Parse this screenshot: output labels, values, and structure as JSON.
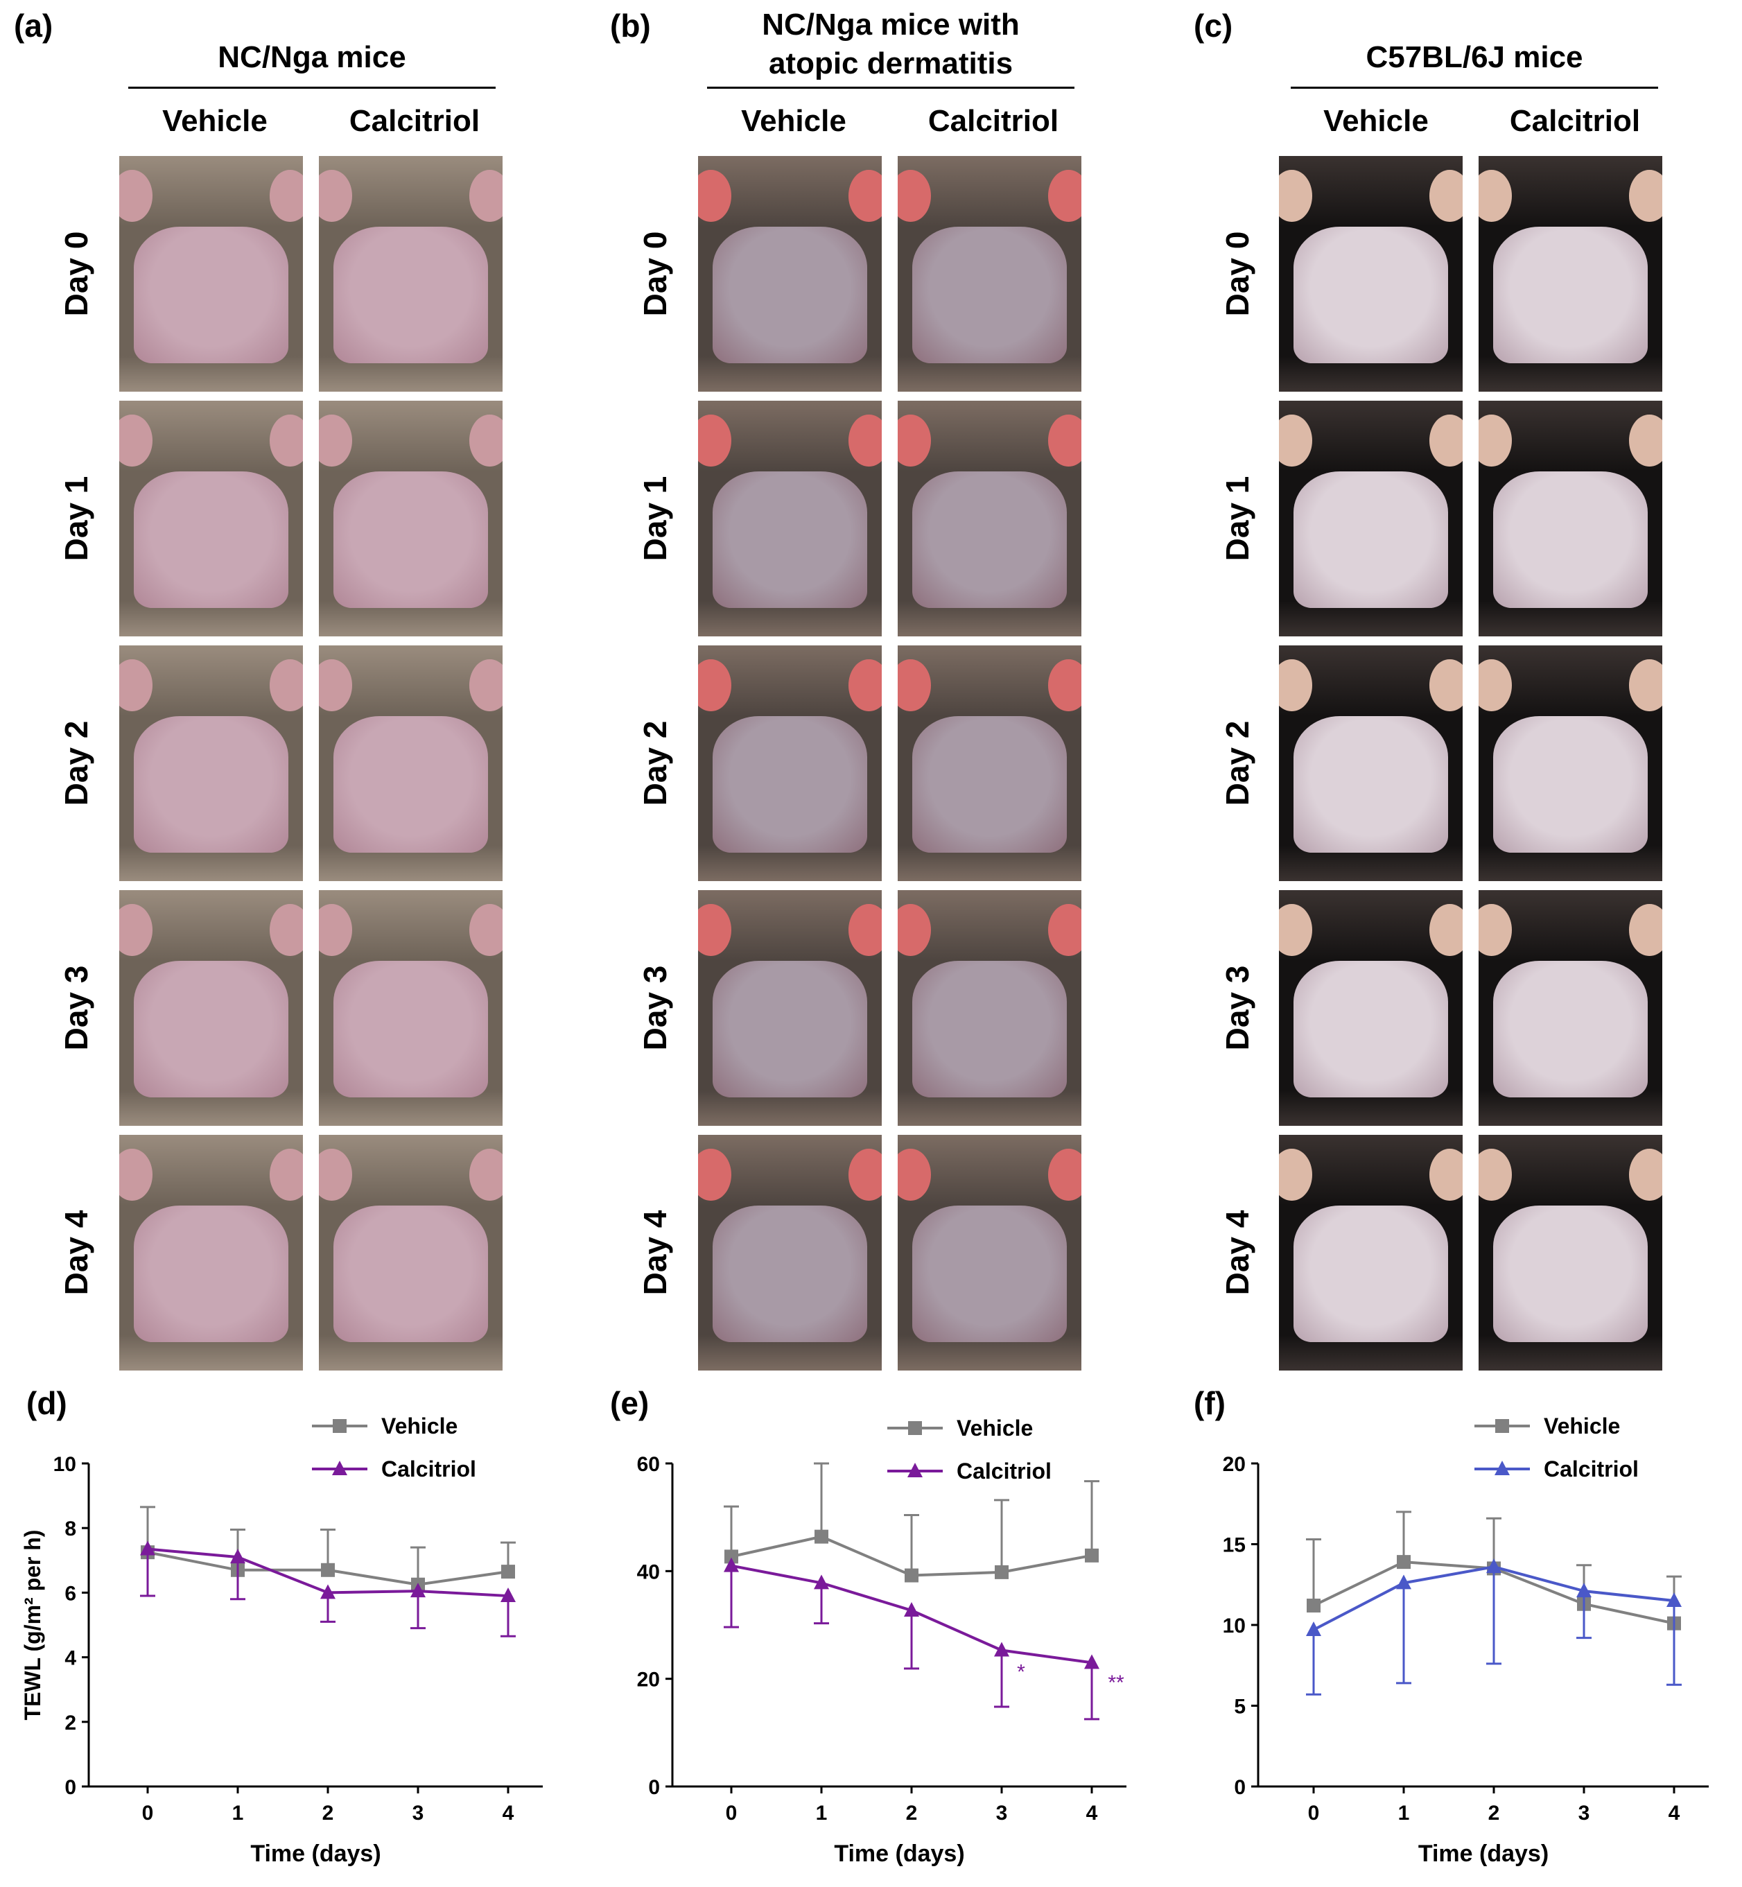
{
  "panels": [
    {
      "label": "(a)",
      "title_lines": [
        "NC/Nga mice"
      ],
      "columns": [
        "Vehicle",
        "Calcitriol"
      ],
      "days": [
        "Day 0",
        "Day 1",
        "Day 2",
        "Day 3",
        "Day 4"
      ],
      "photo_theme": "ncnga"
    },
    {
      "label": "(b)",
      "title_lines": [
        "NC/Nga mice with",
        "atopic dermatitis"
      ],
      "columns": [
        "Vehicle",
        "Calcitriol"
      ],
      "days": [
        "Day 0",
        "Day 1",
        "Day 2",
        "Day 3",
        "Day 4"
      ],
      "photo_theme": "ad"
    },
    {
      "label": "(c)",
      "title_lines": [
        "C57BL/6J mice"
      ],
      "columns": [
        "Vehicle",
        "Calcitriol"
      ],
      "days": [
        "Day 0",
        "Day 1",
        "Day 2",
        "Day 3",
        "Day 4"
      ],
      "photo_theme": "c57"
    }
  ],
  "photo_themes": {
    "ncnga": {
      "fur": "#6e6358",
      "fur_light": "#9a8c7e",
      "skin": "#c8a7b4",
      "skin_edge": "#b08696",
      "ear": "#c99aa0",
      "bg": "#eae6e2"
    },
    "ad": {
      "fur": "#4e4540",
      "fur_light": "#7c6c62",
      "skin": "#a89aa6",
      "skin_edge": "#8e6f7c",
      "ear": "#d76a6a",
      "bg": "#e9e2df"
    },
    "c57": {
      "fur": "#141212",
      "fur_light": "#3a3230",
      "skin": "#ddd2d9",
      "skin_edge": "#b7a1ad",
      "ear": "#dcb9a7",
      "bg": "#ece8e6"
    }
  },
  "chart_data": [
    {
      "label": "(d)",
      "type": "line",
      "xlabel": "Time (days)",
      "ylabel": "TEWL (g/m² per h)",
      "ylim": [
        0,
        10
      ],
      "yticks": [
        0,
        2,
        4,
        6,
        8,
        10
      ],
      "x": [
        0,
        1,
        2,
        3,
        4
      ],
      "series": [
        {
          "name": "Vehicle",
          "color": "#808080",
          "marker": "square",
          "values": [
            7.25,
            6.7,
            6.7,
            6.25,
            6.65
          ],
          "error_upper": [
            8.65,
            7.95,
            7.95,
            7.4,
            7.55
          ],
          "error_lower": [
            null,
            null,
            null,
            null,
            null
          ]
        },
        {
          "name": "Calcitriol",
          "color": "#7a1a9a",
          "marker": "triangle",
          "values": [
            7.35,
            7.1,
            6.0,
            6.05,
            5.9
          ],
          "error_upper": [
            null,
            null,
            null,
            null,
            null
          ],
          "error_lower": [
            5.9,
            5.8,
            5.1,
            4.9,
            4.65
          ]
        }
      ],
      "annotations": []
    },
    {
      "label": "(e)",
      "type": "line",
      "xlabel": "Time (days)",
      "ylabel": "",
      "ylim": [
        0,
        60
      ],
      "yticks": [
        0,
        20,
        40,
        60
      ],
      "x": [
        0,
        1,
        2,
        3,
        4
      ],
      "series": [
        {
          "name": "Vehicle",
          "color": "#808080",
          "marker": "square",
          "values": [
            42.7,
            46.4,
            39.2,
            39.8,
            42.9
          ],
          "error_upper": [
            52.0,
            60.0,
            50.4,
            53.2,
            56.7
          ],
          "error_lower": [
            null,
            null,
            null,
            null,
            null
          ]
        },
        {
          "name": "Calcitriol",
          "color": "#7a1a9a",
          "marker": "triangle",
          "values": [
            41.0,
            37.8,
            32.7,
            25.3,
            23.0
          ],
          "error_upper": [
            null,
            null,
            null,
            null,
            null
          ],
          "error_lower": [
            29.6,
            30.3,
            21.9,
            14.8,
            12.5
          ]
        }
      ],
      "annotations": [
        {
          "x": 3,
          "y": 20,
          "text": "*"
        },
        {
          "x": 4,
          "y": 18,
          "text": "**"
        }
      ]
    },
    {
      "label": "(f)",
      "type": "line",
      "xlabel": "Time (days)",
      "ylabel": "",
      "ylim": [
        0,
        20
      ],
      "yticks": [
        0,
        5,
        10,
        15,
        20
      ],
      "x": [
        0,
        1,
        2,
        3,
        4
      ],
      "series": [
        {
          "name": "Vehicle",
          "color": "#808080",
          "marker": "square",
          "values": [
            11.2,
            13.9,
            13.5,
            11.3,
            10.1
          ],
          "error_upper": [
            15.3,
            17.0,
            16.6,
            13.7,
            13.0
          ],
          "error_lower": [
            null,
            null,
            null,
            null,
            null
          ]
        },
        {
          "name": "Calcitriol",
          "color": "#4a58c8",
          "marker": "triangle",
          "values": [
            9.7,
            12.6,
            13.6,
            12.1,
            11.5
          ],
          "error_upper": [
            null,
            null,
            null,
            null,
            null
          ],
          "error_lower": [
            5.7,
            6.4,
            7.6,
            9.2,
            6.3
          ]
        }
      ],
      "annotations": []
    }
  ]
}
